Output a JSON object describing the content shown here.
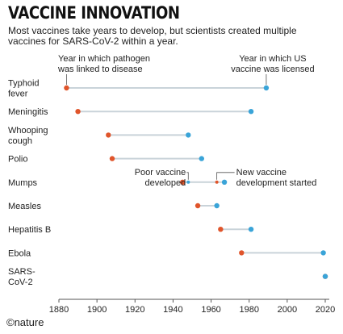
{
  "header": {
    "title": "VACCINE INNOVATION",
    "subtitle": "Most vaccines take years to develop, but scientists created multiple vaccines for SARS-CoV-2 within a year."
  },
  "source": "©nature",
  "colors": {
    "linked": "#e0552b",
    "licensed": "#3aa4d8",
    "connector": "#c9d3d9",
    "axis": "#555555"
  },
  "chart_data": {
    "type": "dumbbell",
    "xlim": [
      1880,
      2020
    ],
    "x_ticks": [
      1880,
      1900,
      1920,
      1940,
      1960,
      1980,
      2000,
      2020
    ],
    "x_tick_labels": [
      "1880",
      "1900",
      "1920",
      "1940",
      "1960",
      "1980",
      "2000",
      "2020"
    ],
    "categories": [
      {
        "label": [
          "Typhoid",
          "fever"
        ],
        "linked": 1884,
        "licensed": 1989
      },
      {
        "label": [
          "Meningitis"
        ],
        "linked": 1890,
        "licensed": 1981
      },
      {
        "label": [
          "Whooping",
          "cough"
        ],
        "linked": 1906,
        "licensed": 1948
      },
      {
        "label": [
          "Polio"
        ],
        "linked": 1908,
        "licensed": 1955
      },
      {
        "label": [
          "Mumps"
        ],
        "linked": 1945,
        "licensed": 1967,
        "poor_vaccine": 1948,
        "new_development": 1963
      },
      {
        "label": [
          "Measles"
        ],
        "linked": 1953,
        "licensed": 1963
      },
      {
        "label": [
          "Hepatitis B"
        ],
        "linked": 1965,
        "licensed": 1981
      },
      {
        "label": [
          "Ebola"
        ],
        "linked": 1976,
        "licensed": 2019
      },
      {
        "label": [
          "SARS-",
          "CoV-2"
        ],
        "linked": 2020,
        "licensed": 2020
      }
    ],
    "annotations": {
      "linked": [
        "Year in which pathogen",
        "was linked to disease"
      ],
      "licensed": [
        "Year in which US",
        "vaccine was licensed"
      ],
      "poor_vaccine": [
        "Poor vaccine",
        "developed"
      ],
      "new_development": [
        "New vaccine",
        "development started"
      ]
    }
  }
}
